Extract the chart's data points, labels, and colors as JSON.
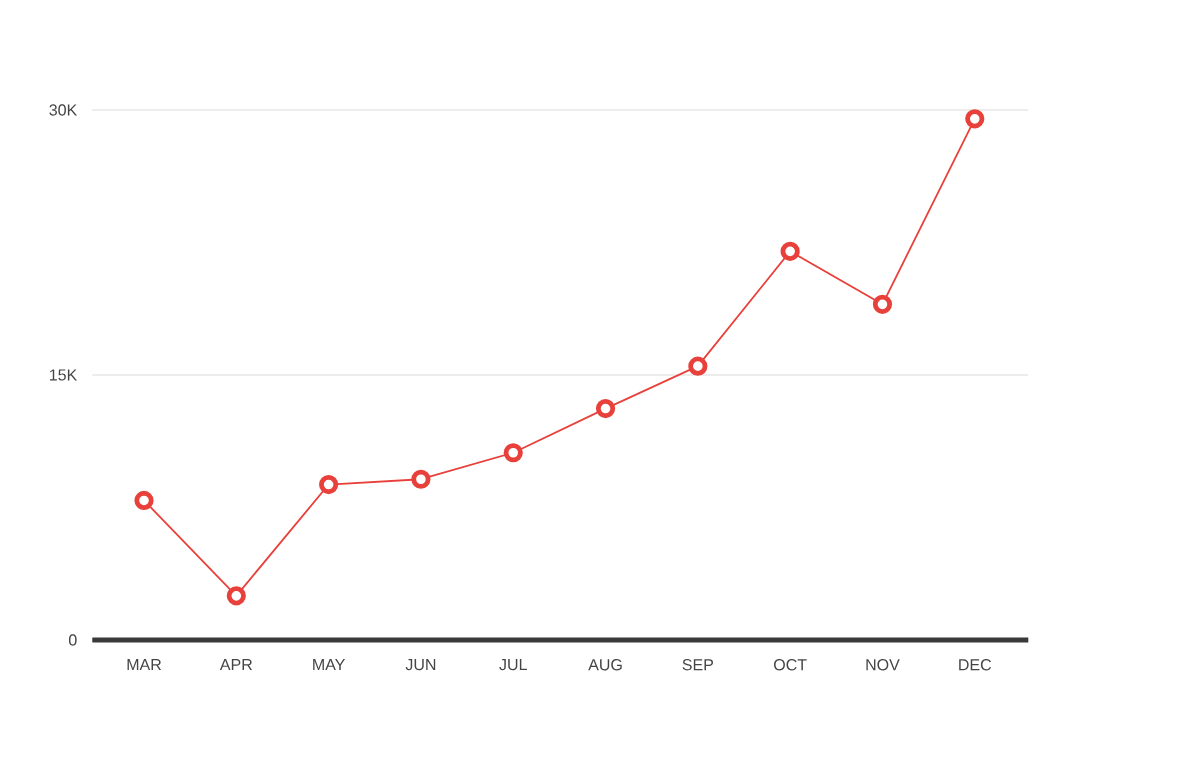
{
  "chart_data": {
    "type": "line",
    "categories": [
      "MAR",
      "APR",
      "MAY",
      "JUN",
      "JUL",
      "AUG",
      "SEP",
      "OCT",
      "NOV",
      "DEC"
    ],
    "series": [
      {
        "color": "#e8403a",
        "values": [
          7900,
          2500,
          8800,
          9100,
          10600,
          13100,
          15500,
          22000,
          19000,
          29500
        ]
      }
    ],
    "ylim": [
      0,
      30000
    ],
    "yticks": [
      0,
      {
        "value": 15000,
        "label": "15K"
      },
      {
        "value": 30000,
        "label": "30K"
      }
    ],
    "grid": "y",
    "marker": "circle",
    "line_style": "solid"
  }
}
